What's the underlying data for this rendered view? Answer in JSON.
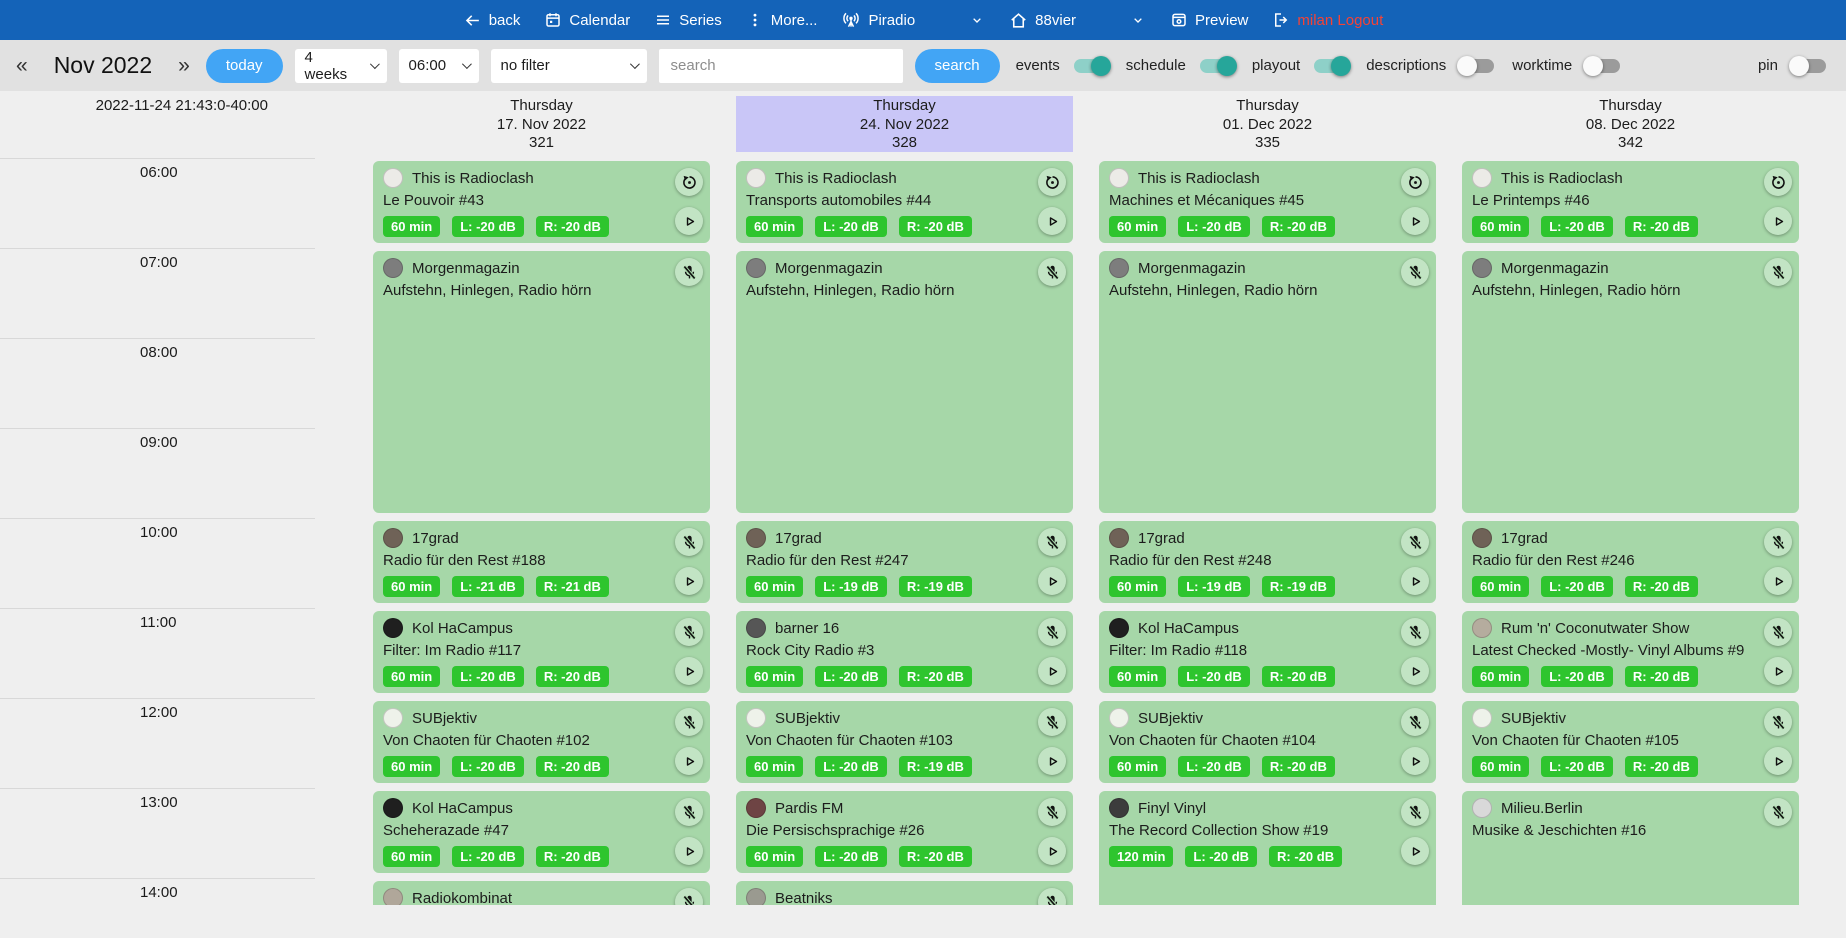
{
  "navbar": {
    "back": "back",
    "calendar": "Calendar",
    "series": "Series",
    "more": "More...",
    "station": "Piradio",
    "channel": "88vier",
    "preview": "Preview",
    "logout": "milan Logout"
  },
  "toolbar": {
    "prev": "«",
    "month": "Nov 2022",
    "next": "»",
    "today": "today",
    "range_select": "4 weeks",
    "time_select": "06:00",
    "filter_select": "no filter",
    "search_placeholder": "search",
    "search_button": "search",
    "toggles": [
      {
        "label": "events",
        "on": true
      },
      {
        "label": "schedule",
        "on": true
      },
      {
        "label": "playout",
        "on": true
      },
      {
        "label": "descriptions",
        "on": false
      },
      {
        "label": "worktime",
        "on": false
      }
    ],
    "pin": {
      "label": "pin",
      "on": false
    }
  },
  "timeline": {
    "now": "2022-11-24 21:43:0-40:00",
    "hours": [
      "06:00",
      "07:00",
      "08:00",
      "09:00",
      "10:00",
      "11:00",
      "12:00",
      "13:00",
      "14:00"
    ]
  },
  "colors": {
    "navbar_bg": "#1463b8",
    "accent_blue": "#42a5f5",
    "toggle_on": "#26a69a",
    "card_green": "#a6d7a8",
    "badge_green": "#2ec52e",
    "highlight_purple": "#c9c6f7",
    "logout_red": "#f44336"
  },
  "calendar": {
    "columns": [
      {
        "weekday": "Thursday",
        "date": "17. Nov 2022",
        "day_number": "321",
        "highlighted": false,
        "events": [
          {
            "show": "This is Radioclash",
            "episode": "Le Pouvoir #43",
            "start": 6,
            "hours": 1,
            "badges": [
              "60 min",
              "L: -20 dB",
              "R: -20 dB"
            ],
            "status": "replay",
            "play": true,
            "avatar": "#ecebe7"
          },
          {
            "show": "Morgenmagazin",
            "episode": "Aufstehn, Hinlegen, Radio hörn",
            "start": 7,
            "hours": 3,
            "badges": [],
            "status": "mic-off",
            "play": false,
            "avatar": "#7d7d7d"
          },
          {
            "show": "17grad",
            "episode": "Radio für den Rest #188",
            "start": 10,
            "hours": 1,
            "badges": [
              "60 min",
              "L: -21 dB",
              "R: -21 dB"
            ],
            "status": "mic-off",
            "play": true,
            "avatar": "#6f6257"
          },
          {
            "show": "Kol HaCampus",
            "episode": "Filter: Im Radio #117",
            "start": 11,
            "hours": 1,
            "badges": [
              "60 min",
              "L: -20 dB",
              "R: -20 dB"
            ],
            "status": "mic-off",
            "play": true,
            "avatar": "#1f1f1f"
          },
          {
            "show": "SUBjektiv",
            "episode": "Von Chaoten für Chaoten #102",
            "start": 12,
            "hours": 1,
            "badges": [
              "60 min",
              "L: -20 dB",
              "R: -20 dB"
            ],
            "status": "mic-off",
            "play": true,
            "avatar": "#eef2ea"
          },
          {
            "show": "Kol HaCampus",
            "episode": "Scheherazade #47",
            "start": 13,
            "hours": 1,
            "badges": [
              "60 min",
              "L: -20 dB",
              "R: -20 dB"
            ],
            "status": "mic-off",
            "play": true,
            "avatar": "#1f1f1f"
          },
          {
            "show": "Radiokombinat",
            "episode": "",
            "start": 14,
            "hours": 1,
            "badges": [],
            "status": "mic-off",
            "play": false,
            "avatar": "#b0a79a"
          }
        ]
      },
      {
        "weekday": "Thursday",
        "date": "24. Nov 2022",
        "day_number": "328",
        "highlighted": true,
        "events": [
          {
            "show": "This is Radioclash",
            "episode": "Transports automobiles #44",
            "start": 6,
            "hours": 1,
            "badges": [
              "60 min",
              "L: -20 dB",
              "R: -20 dB"
            ],
            "status": "replay",
            "play": true,
            "avatar": "#ecebe7"
          },
          {
            "show": "Morgenmagazin",
            "episode": "Aufstehn, Hinlegen, Radio hörn",
            "start": 7,
            "hours": 3,
            "badges": [],
            "status": "mic-off",
            "play": false,
            "avatar": "#7d7d7d"
          },
          {
            "show": "17grad",
            "episode": "Radio für den Rest #247",
            "start": 10,
            "hours": 1,
            "badges": [
              "60 min",
              "L: -19 dB",
              "R: -19 dB"
            ],
            "status": "mic-off",
            "play": true,
            "avatar": "#6f6257"
          },
          {
            "show": "barner 16",
            "episode": "Rock City Radio #3",
            "start": 11,
            "hours": 1,
            "badges": [
              "60 min",
              "L: -20 dB",
              "R: -20 dB"
            ],
            "status": "mic-off",
            "play": true,
            "avatar": "#565656"
          },
          {
            "show": "SUBjektiv",
            "episode": "Von Chaoten für Chaoten #103",
            "start": 12,
            "hours": 1,
            "badges": [
              "60 min",
              "L: -20 dB",
              "R: -19 dB"
            ],
            "status": "mic-off",
            "play": true,
            "avatar": "#eef2ea"
          },
          {
            "show": "Pardis FM",
            "episode": "Die Persischsprachige #26",
            "start": 13,
            "hours": 1,
            "badges": [
              "60 min",
              "L: -20 dB",
              "R: -20 dB"
            ],
            "status": "mic-off",
            "play": true,
            "avatar": "#6e4444"
          },
          {
            "show": "Beatniks",
            "episode": "",
            "start": 14,
            "hours": 1,
            "badges": [],
            "status": "mic-off",
            "play": false,
            "avatar": "#9a9a90"
          }
        ]
      },
      {
        "weekday": "Thursday",
        "date": "01. Dec 2022",
        "day_number": "335",
        "highlighted": false,
        "events": [
          {
            "show": "This is Radioclash",
            "episode": "Machines et Mécaniques #45",
            "start": 6,
            "hours": 1,
            "badges": [
              "60 min",
              "L: -20 dB",
              "R: -20 dB"
            ],
            "status": "replay",
            "play": true,
            "avatar": "#ecebe7"
          },
          {
            "show": "Morgenmagazin",
            "episode": "Aufstehn, Hinlegen, Radio hörn",
            "start": 7,
            "hours": 3,
            "badges": [],
            "status": "mic-off",
            "play": false,
            "avatar": "#7d7d7d"
          },
          {
            "show": "17grad",
            "episode": "Radio für den Rest #248",
            "start": 10,
            "hours": 1,
            "badges": [
              "60 min",
              "L: -19 dB",
              "R: -19 dB"
            ],
            "status": "mic-off",
            "play": true,
            "avatar": "#6f6257"
          },
          {
            "show": "Kol HaCampus",
            "episode": "Filter: Im Radio #118",
            "start": 11,
            "hours": 1,
            "badges": [
              "60 min",
              "L: -20 dB",
              "R: -20 dB"
            ],
            "status": "mic-off",
            "play": true,
            "avatar": "#1f1f1f"
          },
          {
            "show": "SUBjektiv",
            "episode": "Von Chaoten für Chaoten #104",
            "start": 12,
            "hours": 1,
            "badges": [
              "60 min",
              "L: -20 dB",
              "R: -20 dB"
            ],
            "status": "mic-off",
            "play": true,
            "avatar": "#eef2ea"
          },
          {
            "show": "Finyl Vinyl",
            "episode": "The Record Collection Show #19",
            "start": 13,
            "hours": 2,
            "badges": [
              "120 min",
              "L: -20 dB",
              "R: -20 dB"
            ],
            "status": "mic-off",
            "play": true,
            "avatar": "#3c3c3c"
          }
        ]
      },
      {
        "weekday": "Thursday",
        "date": "08. Dec 2022",
        "day_number": "342",
        "highlighted": false,
        "events": [
          {
            "show": "This is Radioclash",
            "episode": "Le Printemps #46",
            "start": 6,
            "hours": 1,
            "badges": [
              "60 min",
              "L: -20 dB",
              "R: -20 dB"
            ],
            "status": "replay",
            "play": true,
            "avatar": "#ecebe7"
          },
          {
            "show": "Morgenmagazin",
            "episode": "Aufstehn, Hinlegen, Radio hörn",
            "start": 7,
            "hours": 3,
            "badges": [],
            "status": "mic-off",
            "play": false,
            "avatar": "#7d7d7d"
          },
          {
            "show": "17grad",
            "episode": "Radio für den Rest #246",
            "start": 10,
            "hours": 1,
            "badges": [
              "60 min",
              "L: -20 dB",
              "R: -20 dB"
            ],
            "status": "mic-off",
            "play": true,
            "avatar": "#6f6257"
          },
          {
            "show": "Rum 'n' Coconutwater Show",
            "episode": "Latest Checked -Mostly- Vinyl Albums #9",
            "start": 11,
            "hours": 1,
            "badges": [
              "60 min",
              "L: -20 dB",
              "R: -20 dB"
            ],
            "status": "mic-off",
            "play": true,
            "avatar": "#b5ac9e"
          },
          {
            "show": "SUBjektiv",
            "episode": "Von Chaoten für Chaoten #105",
            "start": 12,
            "hours": 1,
            "badges": [
              "60 min",
              "L: -20 dB",
              "R: -20 dB"
            ],
            "status": "mic-off",
            "play": true,
            "avatar": "#eef2ea"
          },
          {
            "show": "Milieu.Berlin",
            "episode": "Musike & Jeschichten #16",
            "start": 13,
            "hours": 2,
            "badges": [],
            "status": "mic-off",
            "play": false,
            "avatar": "#d9d9d9"
          }
        ]
      }
    ]
  }
}
